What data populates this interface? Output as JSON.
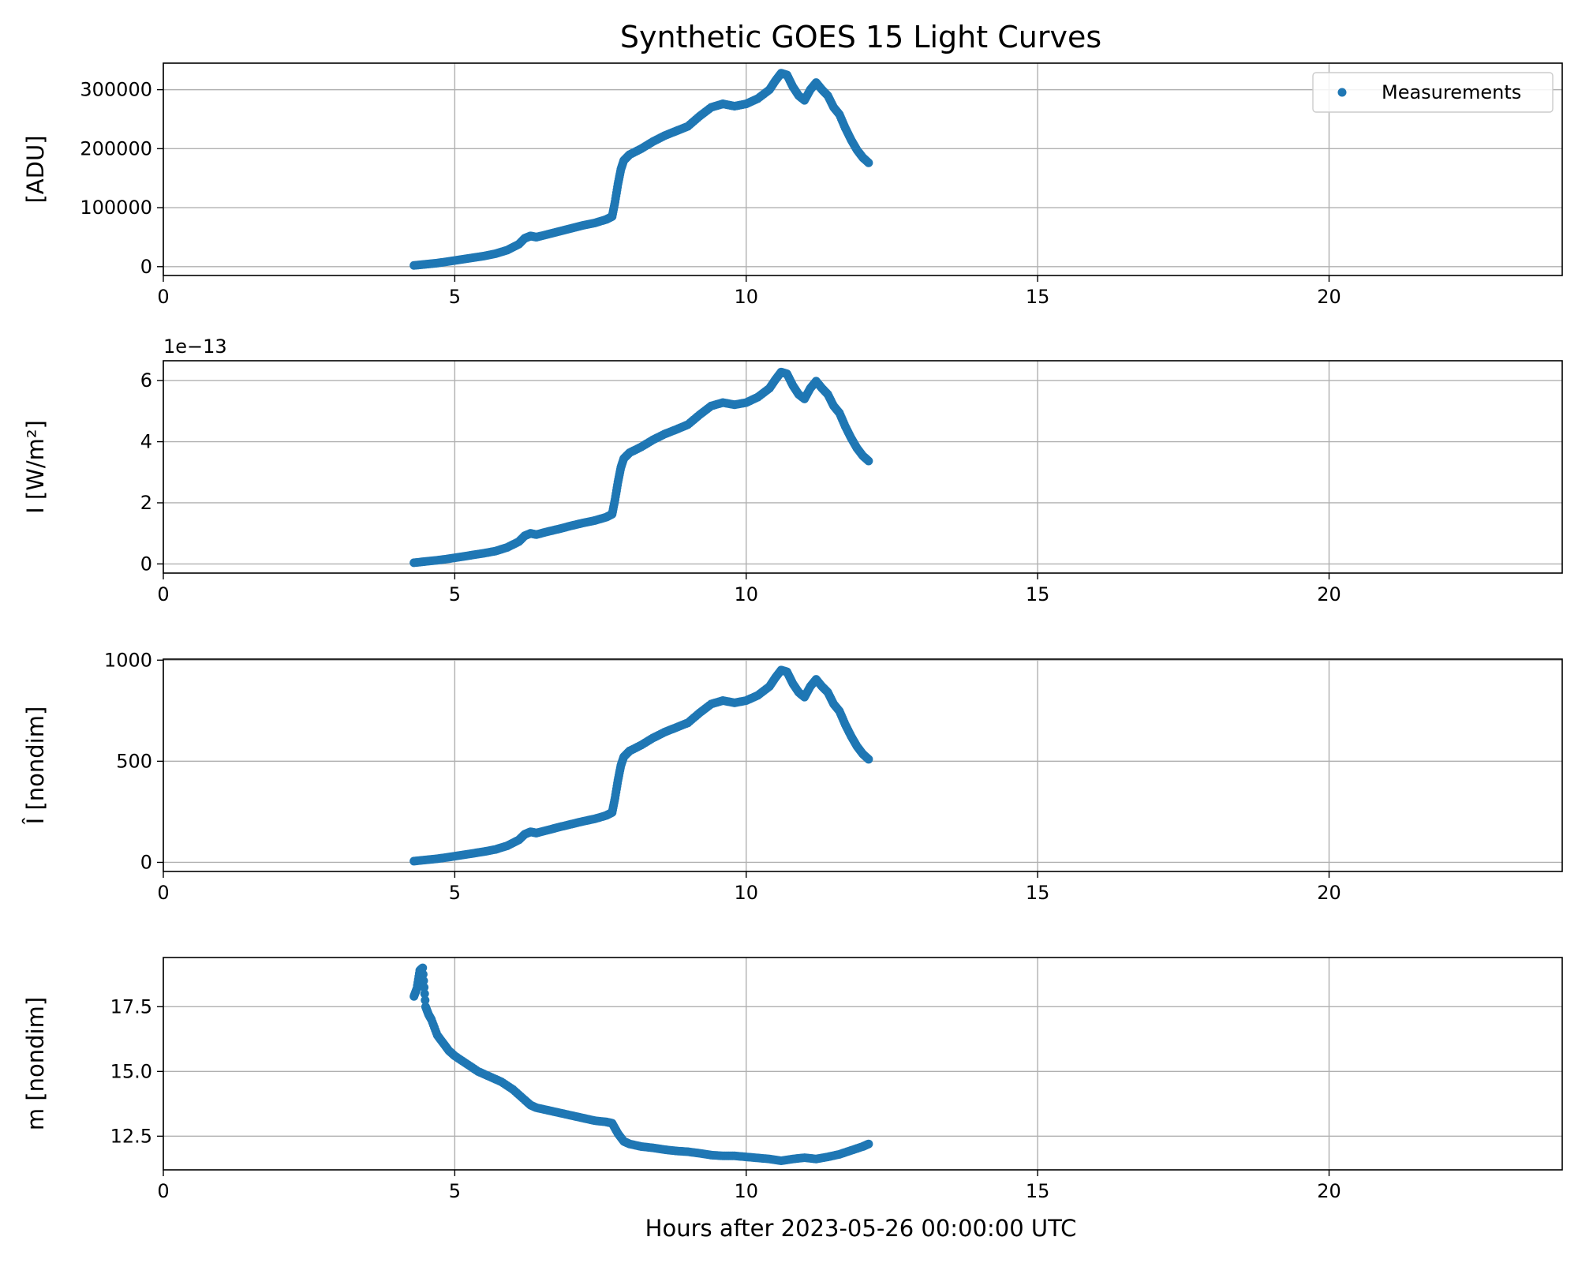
{
  "figure": {
    "title": "Synthetic GOES 15 Light Curves",
    "xlabel": "Hours after 2023-05-26 00:00:00 UTC",
    "point_color": "#1f77b4",
    "legend_label": "Measurements"
  },
  "chart_data": [
    {
      "type": "scatter",
      "name": "adu",
      "ylabel": "[ADU]",
      "offset_text": "",
      "xlim": [
        0,
        24
      ],
      "ylim": [
        -15000,
        345000
      ],
      "xticks": [
        0,
        5,
        10,
        15,
        20
      ],
      "xtick_labels": [
        "0",
        "5",
        "10",
        "15",
        "20"
      ],
      "yticks": [
        0,
        100000,
        200000,
        300000
      ],
      "ytick_labels": [
        "0",
        "100000",
        "200000",
        "300000"
      ],
      "grid": true,
      "legend": "top-right",
      "x": [
        4.3,
        4.5,
        4.7,
        4.9,
        5.1,
        5.3,
        5.5,
        5.7,
        5.9,
        6.1,
        6.2,
        6.3,
        6.4,
        6.6,
        6.8,
        7.0,
        7.2,
        7.4,
        7.6,
        7.7,
        7.75,
        7.8,
        7.85,
        7.9,
        8.0,
        8.2,
        8.4,
        8.6,
        8.8,
        9.0,
        9.2,
        9.4,
        9.6,
        9.8,
        10.0,
        10.2,
        10.4,
        10.5,
        10.6,
        10.7,
        10.8,
        10.9,
        11.0,
        11.1,
        11.2,
        11.3,
        11.4,
        11.5,
        11.6,
        11.7,
        11.8,
        11.9,
        12.0,
        12.1
      ],
      "y": [
        2000,
        4000,
        6000,
        9000,
        12000,
        15000,
        18000,
        22000,
        28000,
        38000,
        48000,
        52000,
        50000,
        55000,
        60000,
        65000,
        70000,
        74000,
        80000,
        85000,
        110000,
        140000,
        165000,
        180000,
        190000,
        200000,
        212000,
        222000,
        230000,
        238000,
        255000,
        270000,
        276000,
        272000,
        276000,
        285000,
        300000,
        315000,
        328000,
        325000,
        305000,
        290000,
        282000,
        300000,
        312000,
        300000,
        290000,
        270000,
        258000,
        235000,
        215000,
        198000,
        185000,
        176000
      ]
    },
    {
      "type": "scatter",
      "name": "irradiance",
      "ylabel": "I [W/m²]",
      "offset_text": "1e−13",
      "xlim": [
        0,
        24
      ],
      "ylim": [
        -0.3,
        6.65
      ],
      "xticks": [
        0,
        5,
        10,
        15,
        20
      ],
      "xtick_labels": [
        "0",
        "5",
        "10",
        "15",
        "20"
      ],
      "yticks": [
        0,
        2,
        4,
        6
      ],
      "ytick_labels": [
        "0",
        "2",
        "4",
        "6"
      ],
      "grid": true,
      "x": [
        4.3,
        4.5,
        4.7,
        4.9,
        5.1,
        5.3,
        5.5,
        5.7,
        5.9,
        6.1,
        6.2,
        6.3,
        6.4,
        6.6,
        6.8,
        7.0,
        7.2,
        7.4,
        7.6,
        7.7,
        7.75,
        7.8,
        7.85,
        7.9,
        8.0,
        8.2,
        8.4,
        8.6,
        8.8,
        9.0,
        9.2,
        9.4,
        9.6,
        9.8,
        10.0,
        10.2,
        10.4,
        10.5,
        10.6,
        10.7,
        10.8,
        10.9,
        11.0,
        11.1,
        11.2,
        11.3,
        11.4,
        11.5,
        11.6,
        11.7,
        11.8,
        11.9,
        12.0,
        12.1
      ],
      "y": [
        0.04,
        0.08,
        0.12,
        0.17,
        0.23,
        0.29,
        0.35,
        0.42,
        0.54,
        0.73,
        0.92,
        1.0,
        0.96,
        1.06,
        1.15,
        1.25,
        1.34,
        1.42,
        1.53,
        1.63,
        2.11,
        2.68,
        3.16,
        3.45,
        3.64,
        3.83,
        4.06,
        4.25,
        4.4,
        4.56,
        4.88,
        5.17,
        5.28,
        5.21,
        5.28,
        5.46,
        5.75,
        6.03,
        6.28,
        6.22,
        5.84,
        5.55,
        5.4,
        5.75,
        5.98,
        5.75,
        5.55,
        5.17,
        4.94,
        4.5,
        4.12,
        3.79,
        3.54,
        3.37
      ]
    },
    {
      "type": "scatter",
      "name": "nondim-irradiance",
      "ylabel": "Î [nondim]",
      "offset_text": "",
      "xlim": [
        0,
        24
      ],
      "ylim": [
        -45,
        1005
      ],
      "xticks": [
        0,
        5,
        10,
        15,
        20
      ],
      "xtick_labels": [
        "0",
        "5",
        "10",
        "15",
        "20"
      ],
      "yticks": [
        0,
        500,
        1000
      ],
      "ytick_labels": [
        "0",
        "500",
        "1000"
      ],
      "grid": true,
      "x": [
        4.3,
        4.5,
        4.7,
        4.9,
        5.1,
        5.3,
        5.5,
        5.7,
        5.9,
        6.1,
        6.2,
        6.3,
        6.4,
        6.6,
        6.8,
        7.0,
        7.2,
        7.4,
        7.6,
        7.7,
        7.75,
        7.8,
        7.85,
        7.9,
        8.0,
        8.2,
        8.4,
        8.6,
        8.8,
        9.0,
        9.2,
        9.4,
        9.6,
        9.8,
        10.0,
        10.2,
        10.4,
        10.5,
        10.6,
        10.7,
        10.8,
        10.9,
        11.0,
        11.1,
        11.2,
        11.3,
        11.4,
        11.5,
        11.6,
        11.7,
        11.8,
        11.9,
        12.0,
        12.1
      ],
      "y": [
        6,
        12,
        18,
        26,
        35,
        44,
        53,
        64,
        82,
        111,
        139,
        151,
        145,
        160,
        175,
        189,
        203,
        215,
        232,
        247,
        319,
        406,
        479,
        522,
        551,
        580,
        615,
        644,
        667,
        690,
        739,
        783,
        800,
        789,
        800,
        826,
        870,
        913,
        951,
        942,
        884,
        841,
        817,
        870,
        905,
        870,
        841,
        783,
        748,
        681,
        624,
        574,
        536,
        510
      ]
    },
    {
      "type": "scatter",
      "name": "magnitude",
      "ylabel": "m [nondim]",
      "offset_text": "",
      "xlim": [
        0,
        24
      ],
      "ylim": [
        11.2,
        19.4
      ],
      "xticks": [
        0,
        5,
        10,
        15,
        20
      ],
      "xtick_labels": [
        "0",
        "5",
        "10",
        "15",
        "20"
      ],
      "yticks": [
        12.5,
        15.0,
        17.5
      ],
      "ytick_labels": [
        "12.5",
        "15.0",
        "17.5"
      ],
      "grid": true,
      "x": [
        4.3,
        4.35,
        4.4,
        4.45,
        4.5,
        4.55,
        4.6,
        4.7,
        4.8,
        4.9,
        5.0,
        5.2,
        5.4,
        5.6,
        5.8,
        6.0,
        6.2,
        6.3,
        6.4,
        6.6,
        6.8,
        7.0,
        7.2,
        7.4,
        7.6,
        7.7,
        7.8,
        7.9,
        8.0,
        8.2,
        8.4,
        8.6,
        8.8,
        9.0,
        9.2,
        9.4,
        9.6,
        9.8,
        10.0,
        10.2,
        10.4,
        10.6,
        10.8,
        11.0,
        11.2,
        11.4,
        11.6,
        11.8,
        12.0,
        12.1
      ],
      "y": [
        17.9,
        18.2,
        18.9,
        19.0,
        17.5,
        17.2,
        17.0,
        16.4,
        16.1,
        15.8,
        15.6,
        15.3,
        15.0,
        14.8,
        14.6,
        14.3,
        13.9,
        13.7,
        13.6,
        13.5,
        13.4,
        13.3,
        13.2,
        13.1,
        13.05,
        13.0,
        12.6,
        12.3,
        12.2,
        12.1,
        12.05,
        11.98,
        11.93,
        11.9,
        11.84,
        11.77,
        11.74,
        11.74,
        11.7,
        11.66,
        11.62,
        11.55,
        11.62,
        11.67,
        11.62,
        11.7,
        11.8,
        11.95,
        12.1,
        12.2
      ]
    }
  ]
}
